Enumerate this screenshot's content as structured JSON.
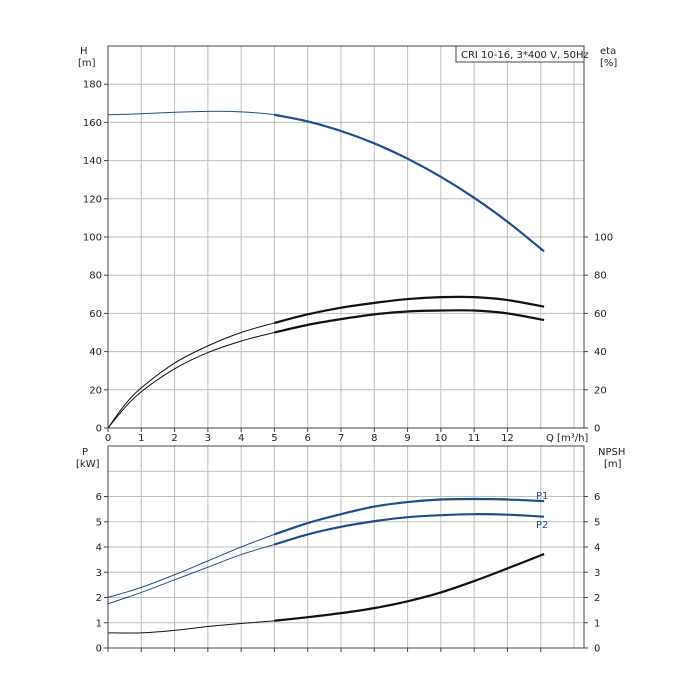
{
  "legend": "CRI 10-16, 3*400 V, 50Hz",
  "chart_data": [
    {
      "type": "line",
      "title": "CRI 10-16, 3*400 V, 50Hz",
      "xlabel": "Q [m³/h]",
      "ylabel": "H\n[m]",
      "ylabel_right": "eta\n[%]",
      "xlim": [
        0,
        14.3
      ],
      "ylim": [
        0,
        200
      ],
      "x_ticks": [
        "0",
        "1",
        "2",
        "3",
        "4",
        "5",
        "6",
        "7",
        "8",
        "9",
        "10",
        "11",
        "12"
      ],
      "y_ticks_left": [
        "0",
        "20",
        "40",
        "60",
        "80",
        "100",
        "120",
        "140",
        "160",
        "180"
      ],
      "y_ticks_right": [
        "0",
        "20",
        "40",
        "60",
        "80",
        "100"
      ],
      "grid": true,
      "series": [
        {
          "name": "",
          "color": "#1f4e8c",
          "x": [
            0,
            1,
            2,
            3,
            4,
            5,
            6,
            7,
            8,
            9,
            10,
            11,
            12,
            13.1
          ],
          "values": [
            164,
            164.5,
            165.3,
            165.8,
            165.5,
            164,
            160.5,
            155.5,
            149,
            141,
            131.5,
            120.5,
            108,
            92.5
          ]
        },
        {
          "name": "",
          "color": "#111111",
          "x": [
            0,
            0.5,
            1,
            2,
            3,
            4,
            5,
            6,
            7,
            8,
            9,
            10,
            11,
            12,
            13.1
          ],
          "values": [
            0,
            12,
            21,
            34,
            43,
            50,
            55,
            59.5,
            63,
            65.5,
            67.5,
            68.5,
            68.5,
            67,
            63.5
          ]
        },
        {
          "name": "",
          "color": "#111111",
          "x": [
            0,
            0.5,
            1,
            2,
            3,
            4,
            5,
            6,
            7,
            8,
            9,
            10,
            11,
            12,
            13.1
          ],
          "values": [
            0,
            10.5,
            19,
            31,
            39.5,
            45.5,
            50,
            54,
            57,
            59.5,
            61,
            61.5,
            61.5,
            60,
            56.5
          ]
        }
      ]
    },
    {
      "type": "line",
      "xlabel": "",
      "ylabel": "P\n[kW]",
      "ylabel_right": "NPSH\n[m]",
      "xlim": [
        0,
        14.3
      ],
      "ylim": [
        0,
        8
      ],
      "y_ticks_left": [
        "0",
        "1",
        "2",
        "3",
        "4",
        "5",
        "6"
      ],
      "y_ticks_right": [
        "0",
        "1",
        "2",
        "3",
        "4",
        "5",
        "6"
      ],
      "grid": true,
      "series": [
        {
          "name": "P1",
          "color": "#1f4e8c",
          "x": [
            0,
            1,
            2,
            3,
            4,
            5,
            6,
            7,
            8,
            9,
            10,
            11,
            12,
            13.1
          ],
          "values": [
            2.0,
            2.4,
            2.9,
            3.45,
            4.0,
            4.5,
            4.95,
            5.3,
            5.6,
            5.78,
            5.88,
            5.9,
            5.88,
            5.82
          ]
        },
        {
          "name": "P2",
          "color": "#1f4e8c",
          "x": [
            0,
            1,
            2,
            3,
            4,
            5,
            6,
            7,
            8,
            9,
            10,
            11,
            12,
            13.1
          ],
          "values": [
            1.75,
            2.2,
            2.7,
            3.2,
            3.7,
            4.1,
            4.5,
            4.8,
            5.02,
            5.18,
            5.26,
            5.3,
            5.28,
            5.2
          ]
        },
        {
          "name": "",
          "color": "#111111",
          "x": [
            0,
            1,
            2,
            3,
            4,
            5,
            6,
            7,
            8,
            9,
            10,
            11,
            12,
            13.1
          ],
          "values": [
            0.6,
            0.6,
            0.7,
            0.85,
            0.97,
            1.08,
            1.22,
            1.38,
            1.58,
            1.85,
            2.2,
            2.65,
            3.15,
            3.72
          ]
        }
      ]
    }
  ]
}
